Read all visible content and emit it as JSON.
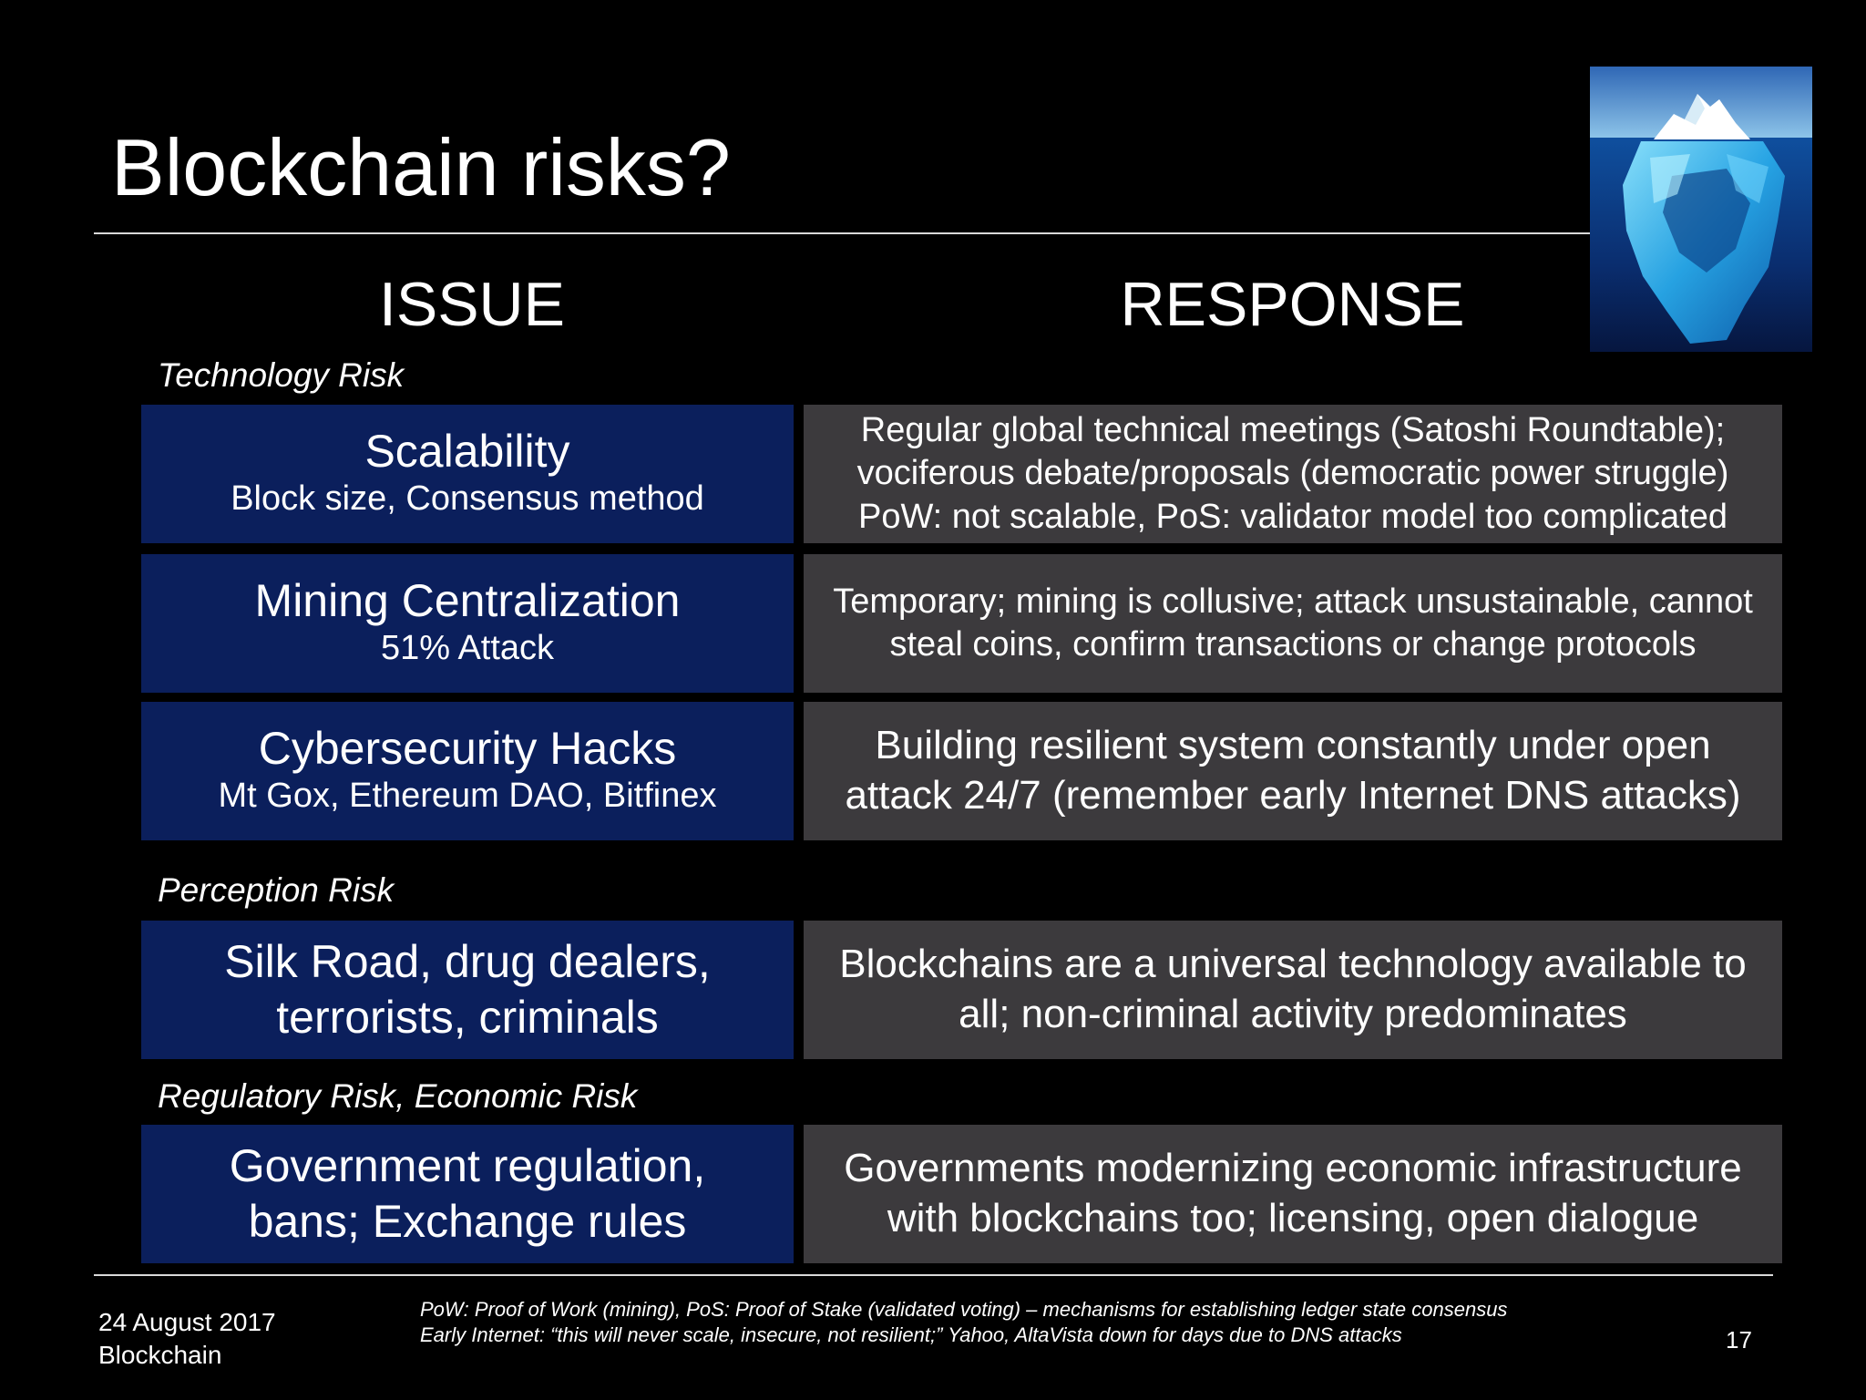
{
  "slide": {
    "title": "Blockchain risks?",
    "columns": {
      "issue": "ISSUE",
      "response": "RESPONSE"
    },
    "sections": {
      "technology": "Technology Risk",
      "perception": "Perception Risk",
      "regulatory": "Regulatory Risk, Economic Risk"
    },
    "rows": [
      {
        "issue_title": "Scalability",
        "issue_sub": "Block size, Consensus method",
        "response_lines": [
          "Regular global technical meetings (Satoshi Roundtable);",
          "vociferous debate/proposals (democratic power struggle)",
          "PoW: not scalable, PoS: validator model too complicated"
        ]
      },
      {
        "issue_title": "Mining Centralization",
        "issue_sub": "51% Attack",
        "response_lines": [
          "Temporary; mining is collusive; attack unsustainable, cannot",
          "steal coins, confirm transactions or change protocols"
        ]
      },
      {
        "issue_title": "Cybersecurity Hacks",
        "issue_sub": "Mt Gox, Ethereum DAO, Bitfinex",
        "response_lines": [
          "Building resilient system constantly under open",
          "attack 24/7 (remember early Internet DNS attacks)"
        ]
      },
      {
        "issue_title_lines": [
          "Silk Road, drug dealers,",
          "terrorists, criminals"
        ],
        "response_lines": [
          "Blockchains are a universal technology available to",
          "all; non-criminal activity predominates"
        ]
      },
      {
        "issue_title_lines": [
          "Government regulation,",
          "bans; Exchange rules"
        ],
        "response_lines": [
          "Governments modernizing economic infrastructure",
          "with blockchains too; licensing, open dialogue"
        ]
      }
    ]
  },
  "footer": {
    "date": "24 August 2017",
    "topic": "Blockchain",
    "footnote_1": "PoW: Proof of Work (mining), PoS: Proof of Stake (validated voting) – mechanisms for establishing ledger state consensus",
    "footnote_2": "Early Internet: “this will never scale, insecure, not resilient;” Yahoo, AltaVista down for days due to DNS attacks",
    "page_number": "17"
  },
  "colors": {
    "background": "#000000",
    "issue_box": "#0b1f5c",
    "response_box": "#3c3a3d",
    "text": "#ffffff"
  }
}
